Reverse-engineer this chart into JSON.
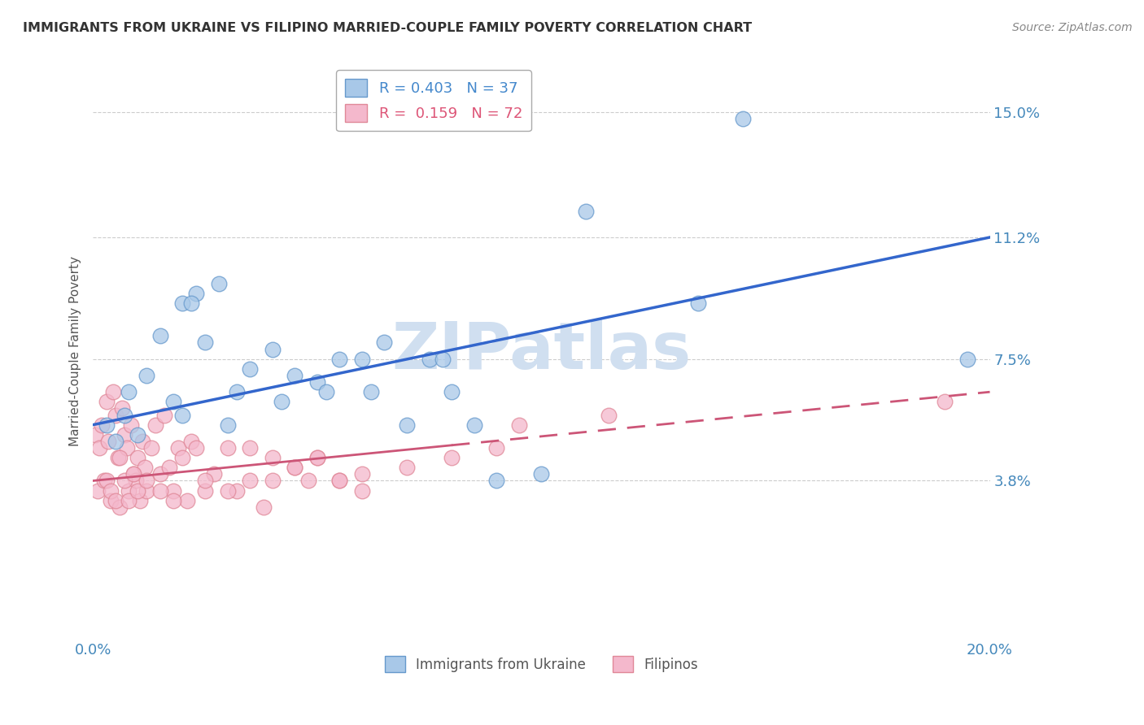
{
  "title": "IMMIGRANTS FROM UKRAINE VS FILIPINO MARRIED-COUPLE FAMILY POVERTY CORRELATION CHART",
  "source": "Source: ZipAtlas.com",
  "xlabel": "",
  "ylabel": "Married-Couple Family Poverty",
  "xlim": [
    0.0,
    20.0
  ],
  "ylim": [
    -1.0,
    16.5
  ],
  "yticks": [
    3.8,
    7.5,
    11.2,
    15.0
  ],
  "xticks": [
    0.0,
    20.0
  ],
  "xtick_labels": [
    "0.0%",
    "20.0%"
  ],
  "series1_label": "Immigrants from Ukraine",
  "series1_R": "0.403",
  "series1_N": "37",
  "series1_color": "#a8c8e8",
  "series1_edge_color": "#6699cc",
  "series1_line_color": "#3366cc",
  "series2_label": "Filipinos",
  "series2_R": "0.159",
  "series2_N": "72",
  "series2_color": "#f4b8cc",
  "series2_edge_color": "#e08898",
  "series2_line_color": "#cc5577",
  "watermark": "ZIPatlas",
  "watermark_color": "#d0dff0",
  "background_color": "#ffffff",
  "ukraine_x": [
    0.3,
    0.5,
    0.7,
    0.8,
    1.0,
    1.2,
    1.5,
    1.8,
    2.0,
    2.3,
    2.5,
    2.8,
    3.2,
    3.5,
    4.0,
    4.5,
    5.0,
    5.5,
    6.0,
    6.5,
    7.0,
    7.5,
    8.0,
    9.0,
    10.0,
    11.0,
    13.5,
    19.5,
    2.0,
    2.2,
    3.0,
    4.2,
    5.2,
    6.2,
    7.8,
    8.5,
    14.5
  ],
  "ukraine_y": [
    5.5,
    5.0,
    5.8,
    6.5,
    5.2,
    7.0,
    8.2,
    6.2,
    9.2,
    9.5,
    8.0,
    9.8,
    6.5,
    7.2,
    7.8,
    7.0,
    6.8,
    7.5,
    7.5,
    8.0,
    5.5,
    7.5,
    6.5,
    3.8,
    4.0,
    12.0,
    9.2,
    7.5,
    5.8,
    9.2,
    5.5,
    6.2,
    6.5,
    6.5,
    7.5,
    5.5,
    14.8
  ],
  "filipino_x": [
    0.05,
    0.1,
    0.15,
    0.2,
    0.25,
    0.3,
    0.35,
    0.4,
    0.45,
    0.5,
    0.55,
    0.6,
    0.65,
    0.7,
    0.75,
    0.8,
    0.85,
    0.9,
    0.95,
    1.0,
    1.05,
    1.1,
    1.15,
    1.2,
    1.3,
    1.4,
    1.5,
    1.6,
    1.7,
    1.8,
    1.9,
    2.0,
    2.1,
    2.2,
    2.3,
    2.5,
    2.7,
    3.0,
    3.2,
    3.5,
    3.8,
    4.0,
    4.5,
    4.8,
    5.0,
    5.5,
    6.0,
    9.5,
    11.5,
    19.0,
    0.3,
    0.4,
    0.5,
    0.6,
    0.7,
    0.8,
    0.9,
    1.0,
    1.2,
    1.5,
    1.8,
    2.5,
    3.0,
    3.5,
    4.0,
    4.5,
    5.0,
    5.5,
    6.0,
    7.0,
    8.0,
    9.0
  ],
  "filipino_y": [
    5.2,
    3.5,
    4.8,
    5.5,
    3.8,
    6.2,
    5.0,
    3.2,
    6.5,
    5.8,
    4.5,
    3.0,
    6.0,
    5.2,
    4.8,
    3.5,
    5.5,
    4.0,
    3.8,
    4.5,
    3.2,
    5.0,
    4.2,
    3.5,
    4.8,
    5.5,
    4.0,
    5.8,
    4.2,
    3.5,
    4.8,
    4.5,
    3.2,
    5.0,
    4.8,
    3.5,
    4.0,
    4.8,
    3.5,
    4.8,
    3.0,
    4.5,
    4.2,
    3.8,
    4.5,
    3.8,
    3.5,
    5.5,
    5.8,
    6.2,
    3.8,
    3.5,
    3.2,
    4.5,
    3.8,
    3.2,
    4.0,
    3.5,
    3.8,
    3.5,
    3.2,
    3.8,
    3.5,
    3.8,
    3.8,
    4.2,
    4.5,
    3.8,
    4.0,
    4.2,
    4.5,
    4.8
  ],
  "ukraine_trend_x0": 0.0,
  "ukraine_trend_y0": 5.5,
  "ukraine_trend_x1": 20.0,
  "ukraine_trend_y1": 11.2,
  "filipino_trend_x0": 0.0,
  "filipino_trend_y0": 3.8,
  "filipino_trend_x1": 20.0,
  "filipino_trend_y1": 6.5,
  "filipino_solid_end_x": 8.0,
  "filipino_dash_start_x": 8.0
}
